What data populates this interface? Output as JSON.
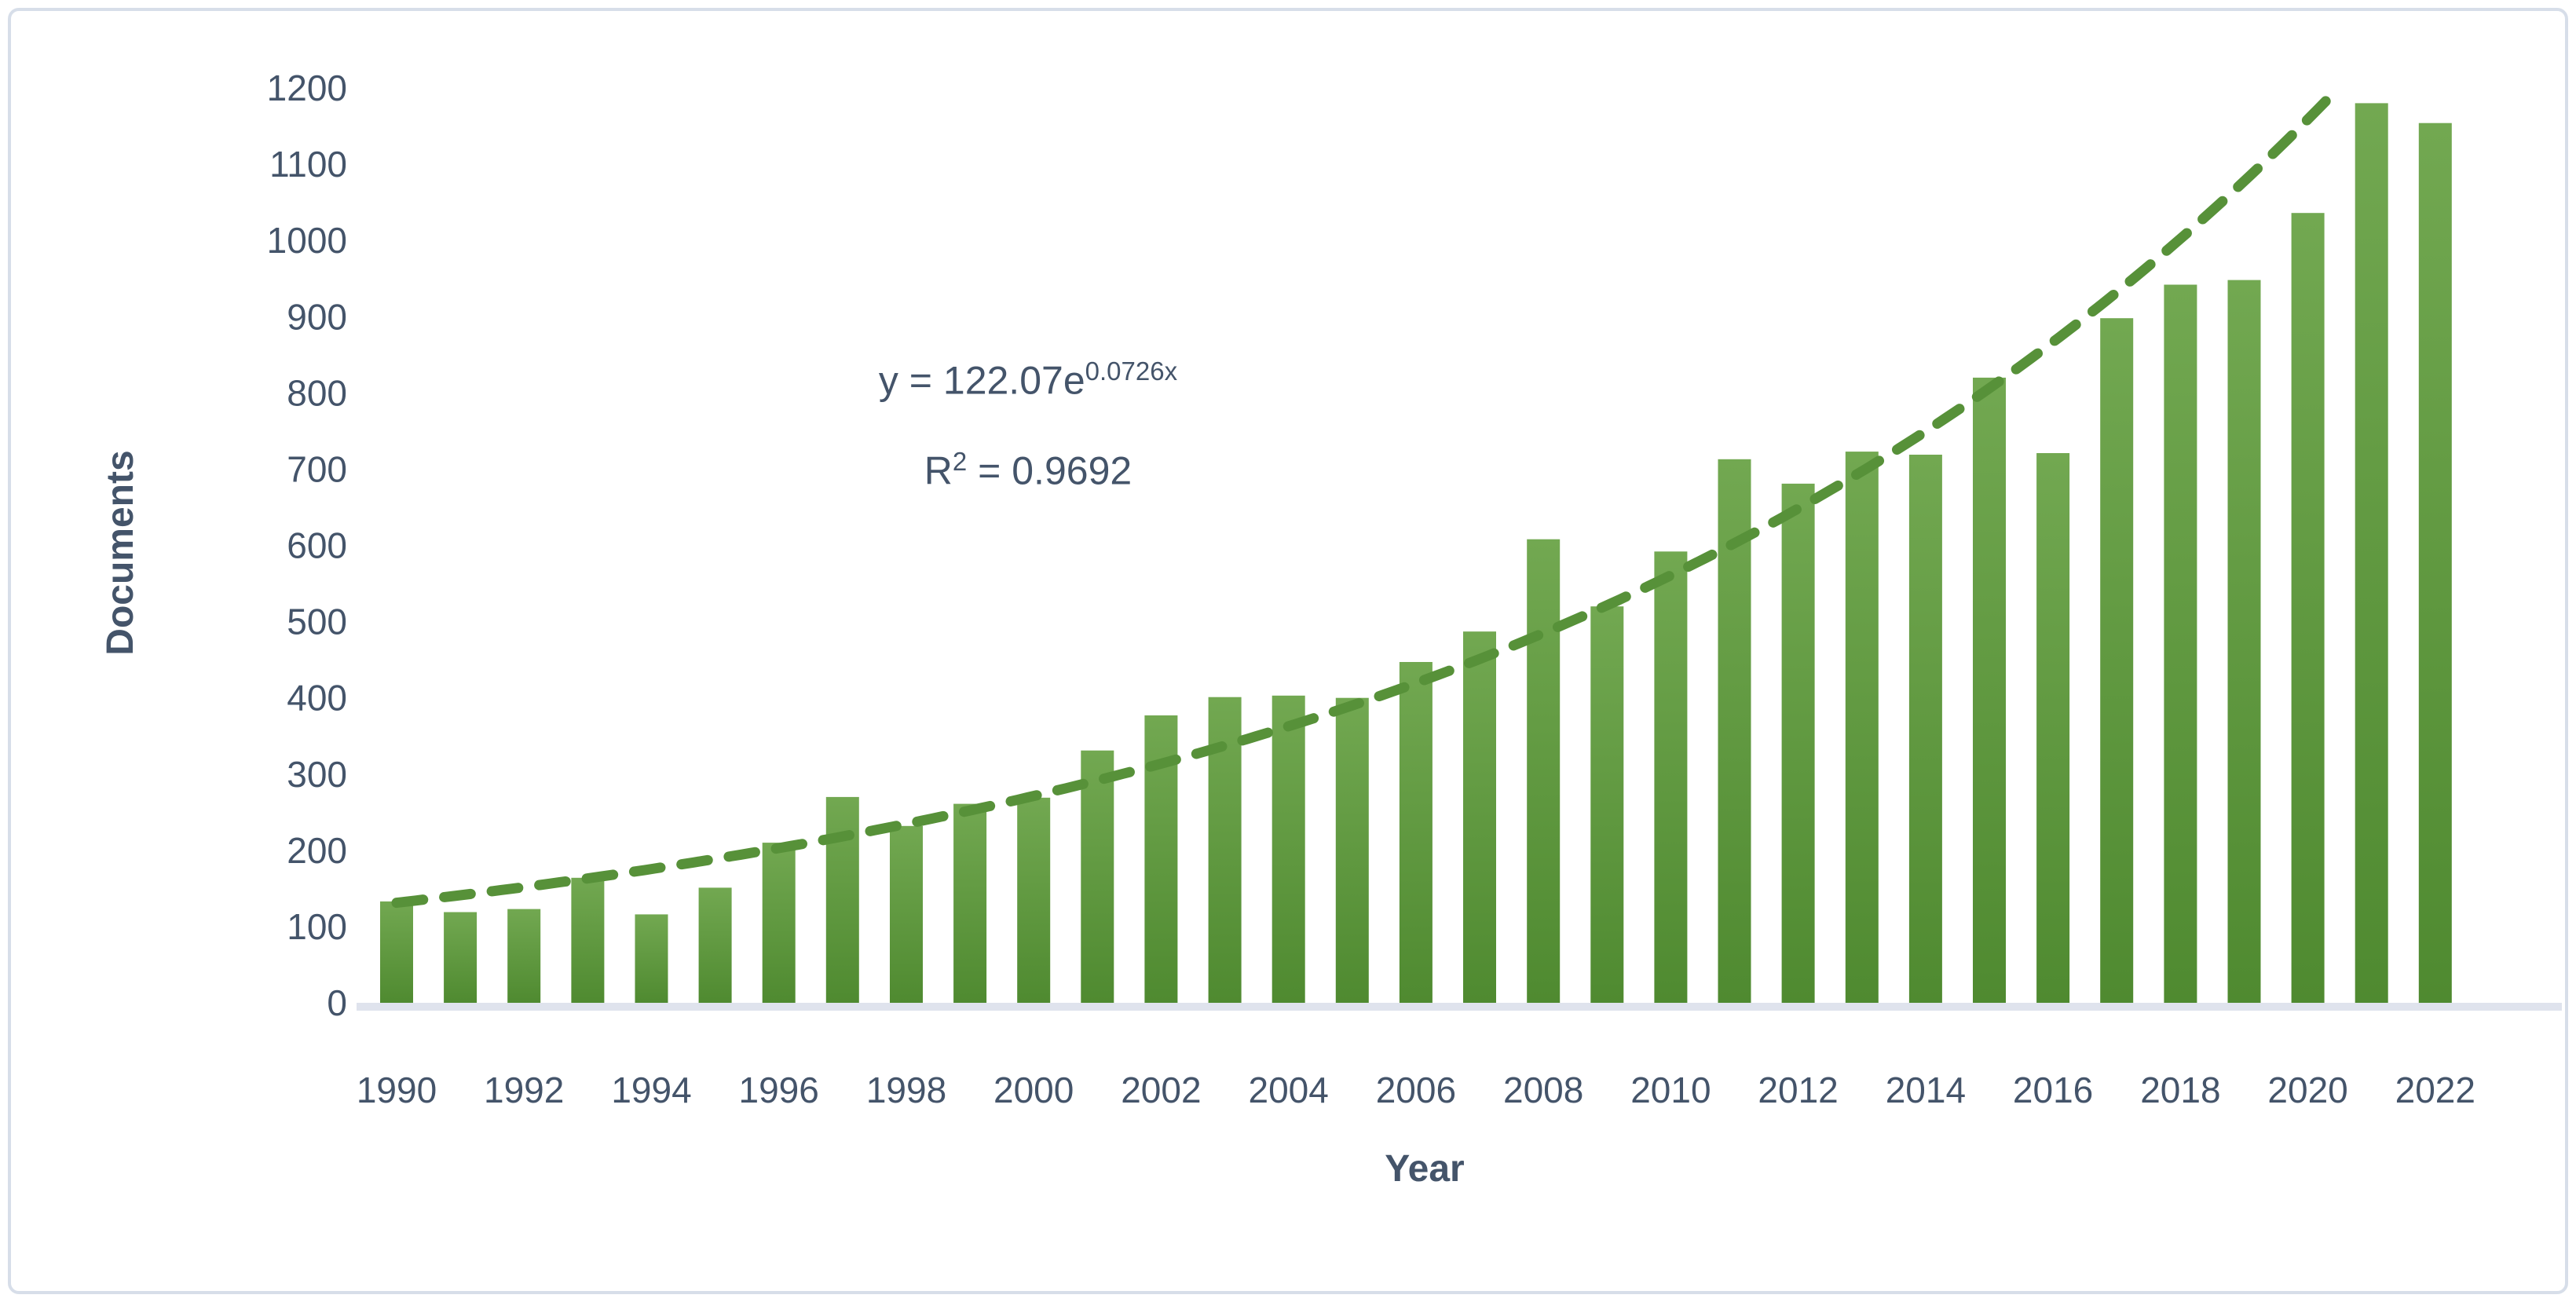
{
  "frame": {
    "background_color": "#ffffff",
    "border_color": "#d7dee9"
  },
  "axes": {
    "x_label": "Year",
    "y_label": "Documents",
    "text_color": "#44546a"
  },
  "annotation": {
    "equation_base": "y = 122.07e",
    "equation_exponent": "0.0726x",
    "r2_base": "R",
    "r2_exponent": "2",
    "r2_value": " = 0.9692"
  },
  "chart_data": {
    "type": "bar",
    "title": "",
    "xlabel": "Year",
    "ylabel": "Documents",
    "categories": [
      1990,
      1991,
      1992,
      1993,
      1994,
      1995,
      1996,
      1997,
      1998,
      1999,
      2000,
      2001,
      2002,
      2003,
      2004,
      2005,
      2006,
      2007,
      2008,
      2009,
      2010,
      2011,
      2012,
      2013,
      2014,
      2015,
      2016,
      2017,
      2018,
      2019,
      2020,
      2021,
      2022
    ],
    "values": [
      133,
      119,
      123,
      164,
      116,
      151,
      210,
      270,
      232,
      261,
      269,
      331,
      377,
      401,
      403,
      400,
      447,
      487,
      608,
      520,
      592,
      713,
      681,
      723,
      719,
      820,
      721,
      898,
      942,
      948,
      1036,
      1180,
      1154
    ],
    "x_tick_labels": [
      "1990",
      "1992",
      "1994",
      "1996",
      "1998",
      "2000",
      "2002",
      "2004",
      "2006",
      "2008",
      "2010",
      "2012",
      "2014",
      "2016",
      "2018",
      "2020",
      "2022"
    ],
    "y_ticks": [
      0,
      100,
      200,
      300,
      400,
      500,
      600,
      700,
      800,
      900,
      1000,
      1100,
      1200
    ],
    "ylim": [
      0,
      1200
    ],
    "grid": false,
    "legend": "none",
    "bar_color_top": "#72a851",
    "bar_color_bottom": "#4f8a30",
    "axis_strip_color": "#dfe3ed",
    "trendline": {
      "type": "exponential",
      "equation": "y = 122.07e^(0.0726x)",
      "coefficient_a": 122.07,
      "coefficient_b": 0.0726,
      "r_squared": 0.9692,
      "color": "#579139",
      "style": "dashed",
      "x_index_of_1990": 1
    }
  }
}
